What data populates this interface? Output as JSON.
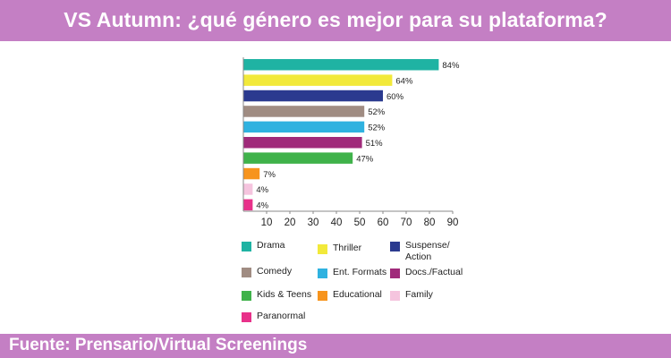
{
  "header": {
    "title": "VS Autumn: ¿qué género es mejor para su plataforma?"
  },
  "footer": {
    "source": "Fuente: Prensario/Virtual Screenings"
  },
  "colors": {
    "banner": "#c47fc4"
  },
  "chart_data": {
    "type": "bar",
    "orientation": "horizontal",
    "categories": [
      "Drama",
      "Thriller",
      "Suspense/ Action",
      "Comedy",
      "Ent. Formats",
      "Docs./Factual",
      "Kids & Teens",
      "Educational",
      "Family",
      "Paranormal"
    ],
    "values": [
      84,
      64,
      60,
      52,
      52,
      51,
      47,
      7,
      4,
      4
    ],
    "data_labels": [
      "84%",
      "64%",
      "60%",
      "52%",
      "52%",
      "51%",
      "47%",
      "7%",
      "4%",
      "4%"
    ],
    "colors": [
      "#1fb3a3",
      "#f2e93a",
      "#2b3a8f",
      "#a08c82",
      "#2fb2e0",
      "#a02a7a",
      "#3fb24a",
      "#f7941d",
      "#f5c4de",
      "#e8318a"
    ],
    "xlim": [
      0,
      90
    ],
    "xticks": [
      "10",
      "20",
      "30",
      "40",
      "50",
      "60",
      "70",
      "80",
      "90"
    ],
    "xlabel": "",
    "ylabel": "",
    "grid": false,
    "legend": {
      "placement": "bottom",
      "entries": [
        {
          "label": "Drama",
          "color": "#1fb3a3"
        },
        {
          "label": "Thriller",
          "color": "#f2e93a"
        },
        {
          "label": "Suspense/ Action",
          "color": "#2b3a8f"
        },
        {
          "label": "Comedy",
          "color": "#a08c82"
        },
        {
          "label": "Ent. Formats",
          "color": "#2fb2e0"
        },
        {
          "label": "Docs./Factual",
          "color": "#a02a7a"
        },
        {
          "label": "Kids & Teens",
          "color": "#3fb24a"
        },
        {
          "label": "Educational",
          "color": "#f7941d"
        },
        {
          "label": "Family",
          "color": "#f5c4de"
        },
        {
          "label": "Paranormal",
          "color": "#e8318a"
        }
      ]
    }
  }
}
